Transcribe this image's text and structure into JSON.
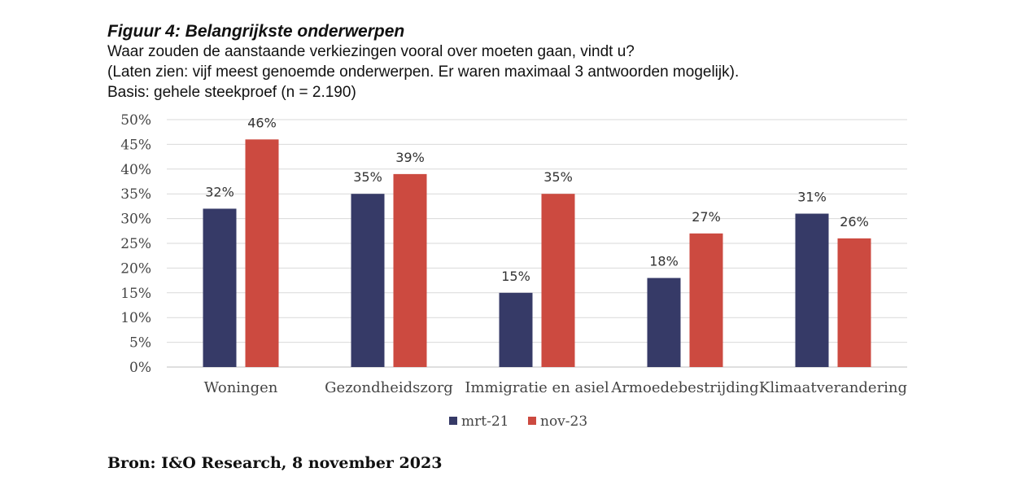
{
  "header": {
    "title": "Figuur 4: Belangrijkste onderwerpen",
    "subtitle_lines": [
      "Waar zouden de aanstaande verkiezingen vooral over moeten gaan, vindt u?",
      "(Laten zien: vijf meest genoemde onderwerpen. Er waren maximaal 3 antwoorden mogelijk).",
      "Basis: gehele steekproef (n = 2.190)"
    ]
  },
  "chart_data": {
    "type": "bar",
    "categories": [
      "Woningen",
      "Gezondheidszorg",
      "Immigratie en asiel",
      "Armoedebestrijding",
      "Klimaatverandering"
    ],
    "series": [
      {
        "name": "mrt-21",
        "values": [
          32,
          35,
          15,
          18,
          31
        ],
        "labels": [
          "32%",
          "35%",
          "15%",
          "18%",
          "31%"
        ],
        "color": "#363a67"
      },
      {
        "name": "nov-23",
        "values": [
          46,
          39,
          35,
          27,
          26
        ],
        "labels": [
          "46%",
          "39%",
          "35%",
          "27%",
          "26%"
        ],
        "color": "#cc4a40"
      }
    ],
    "ylim": [
      0,
      50
    ],
    "yticks": [
      "0%",
      "5%",
      "10%",
      "15%",
      "20%",
      "25%",
      "30%",
      "35%",
      "40%",
      "45%",
      "50%"
    ],
    "grid": true,
    "legend_position": "bottom",
    "xlabel": "",
    "ylabel": ""
  },
  "source": "Bron: I&O Research, 8 november 2023"
}
